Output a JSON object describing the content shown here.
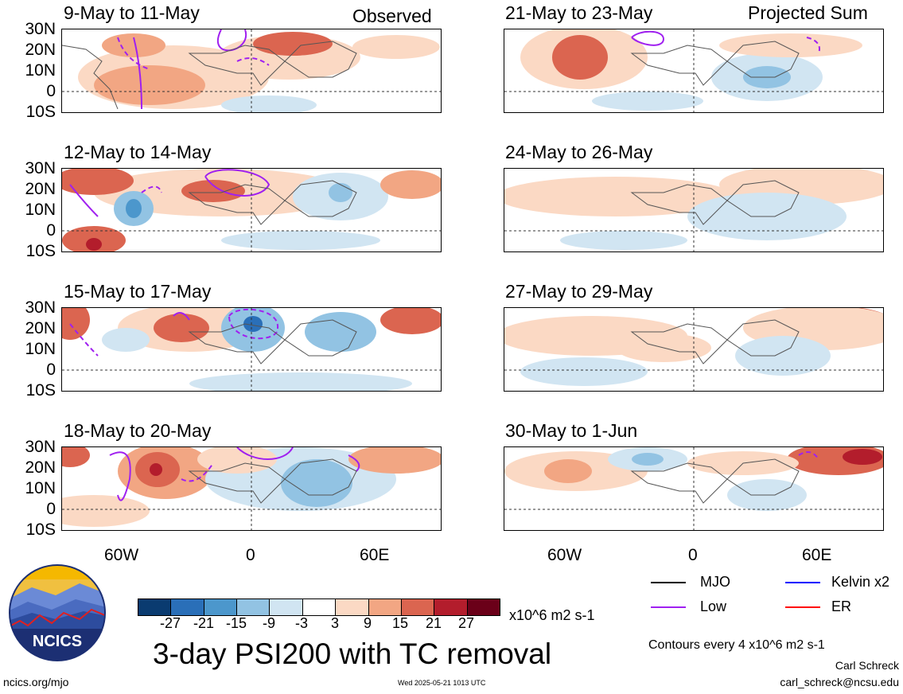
{
  "header": {
    "left_label": "Observed",
    "right_label": "Projected Sum"
  },
  "panels_left": [
    {
      "title": "9-May to 11-May"
    },
    {
      "title": "12-May to 14-May"
    },
    {
      "title": "15-May to 17-May"
    },
    {
      "title": "18-May to 20-May"
    }
  ],
  "panels_right": [
    {
      "title": "21-May to 23-May"
    },
    {
      "title": "24-May to 26-May"
    },
    {
      "title": "27-May to 29-May"
    },
    {
      "title": "30-May to 1-Jun"
    }
  ],
  "lat_labels": [
    "30N",
    "20N",
    "10N",
    "0",
    "10S"
  ],
  "lon_labels": [
    "60W",
    "0",
    "60E"
  ],
  "legend": {
    "mjo": "MJO",
    "kelvin": "Kelvin x2",
    "low": "Low",
    "er": "ER",
    "colors": {
      "mjo": "#000000",
      "kelvin": "#0000ff",
      "low": "#a020f0",
      "er": "#ff0000"
    }
  },
  "colorbar": {
    "ticks": [
      "-27",
      "-21",
      "-15",
      "-9",
      "-3",
      "3",
      "9",
      "15",
      "21",
      "27"
    ],
    "units": "x10^6 m2 s-1",
    "colors": [
      "#0a3b70",
      "#2a6fb8",
      "#4c97cc",
      "#92c3e3",
      "#d1e5f2",
      "#ffffff",
      "#fbd9c4",
      "#f2a683",
      "#db6550",
      "#b31d2c",
      "#6b0019"
    ]
  },
  "main_title": "3-day PSI200 with TC removal",
  "contours_note": "Contours every 4 x10^6 m2 s-1",
  "author": "Carl Schreck",
  "email": "carl_schreck@ncsu.edu",
  "site": "ncics.org/mjo",
  "timestamp": "Wed 2025-05-21 1013 UTC",
  "logo_text": "NCICS"
}
